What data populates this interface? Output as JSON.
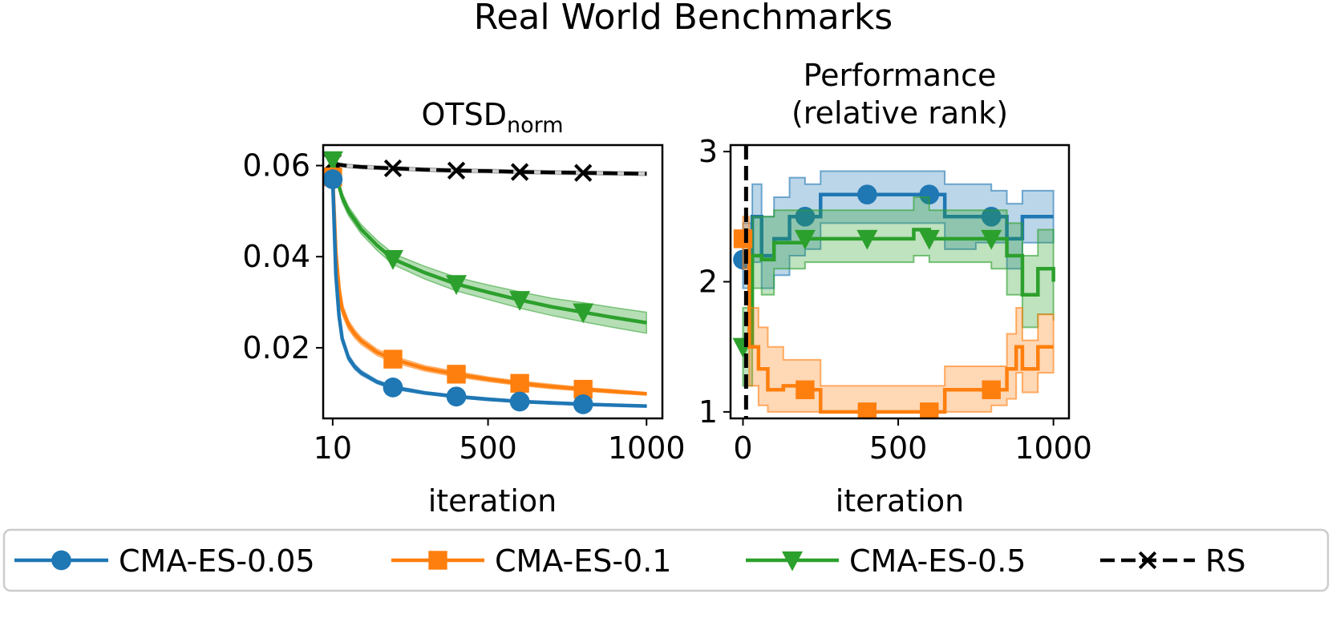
{
  "figure_title": "Real World Benchmarks",
  "colors": {
    "cma005": "#1f77b4",
    "cma01": "#ff7f0e",
    "cma05": "#2ca02c",
    "rs": "#000000"
  },
  "legend": [
    {
      "key": "cma005",
      "label": "CMA-ES-0.05",
      "marker": "circle",
      "dash": "solid"
    },
    {
      "key": "cma01",
      "label": "CMA-ES-0.1",
      "marker": "square",
      "dash": "solid"
    },
    {
      "key": "cma05",
      "label": "CMA-ES-0.5",
      "marker": "triangle-down",
      "dash": "solid"
    },
    {
      "key": "rs",
      "label": "RS",
      "marker": "x",
      "dash": "dashed"
    }
  ],
  "chart_data": [
    {
      "type": "line",
      "title_main": "OTSD",
      "title_sub": "norm",
      "xlabel": "iteration",
      "ylabel": "",
      "xlim": [
        -20,
        1050
      ],
      "ylim": [
        0.0045,
        0.0645
      ],
      "xticks": [
        10,
        500,
        1000
      ],
      "xtick_labels": [
        "10",
        "500",
        "1000"
      ],
      "yticks": [
        0.02,
        0.04,
        0.06
      ],
      "ytick_labels": [
        "0.02",
        "0.04",
        "0.06"
      ],
      "marker_x": [
        10,
        200,
        400,
        600,
        800
      ],
      "series": [
        {
          "key": "rs",
          "name": "RS",
          "x": [
            10,
            30,
            60,
            100,
            200,
            300,
            400,
            500,
            600,
            700,
            800,
            900,
            1000
          ],
          "y": [
            0.0607,
            0.0602,
            0.0599,
            0.0597,
            0.0594,
            0.0591,
            0.0589,
            0.0588,
            0.0586,
            0.0585,
            0.0584,
            0.0583,
            0.0582
          ],
          "lo": [
            0.0603,
            0.0598,
            0.0595,
            0.0593,
            0.059,
            0.0587,
            0.0585,
            0.0584,
            0.0582,
            0.0581,
            0.058,
            0.0579,
            0.0578
          ],
          "hi": [
            0.0611,
            0.0606,
            0.0603,
            0.0601,
            0.0598,
            0.0595,
            0.0593,
            0.0592,
            0.059,
            0.0589,
            0.0588,
            0.0587,
            0.0586
          ]
        },
        {
          "key": "cma05",
          "name": "CMA-ES-0.5",
          "x": [
            10,
            20,
            40,
            60,
            100,
            150,
            200,
            300,
            400,
            500,
            600,
            700,
            800,
            900,
            1000
          ],
          "y": [
            0.0612,
            0.058,
            0.053,
            0.05,
            0.046,
            0.0425,
            0.0395,
            0.0365,
            0.034,
            0.0322,
            0.0305,
            0.029,
            0.0278,
            0.0266,
            0.0255
          ],
          "lo": [
            0.0608,
            0.0572,
            0.052,
            0.049,
            0.045,
            0.0414,
            0.0383,
            0.0351,
            0.0325,
            0.0306,
            0.0287,
            0.0271,
            0.0257,
            0.0244,
            0.0232
          ],
          "hi": [
            0.0616,
            0.0588,
            0.054,
            0.051,
            0.047,
            0.0436,
            0.0407,
            0.0379,
            0.0355,
            0.0338,
            0.0323,
            0.0309,
            0.0299,
            0.0288,
            0.0278
          ]
        },
        {
          "key": "cma01",
          "name": "CMA-ES-0.1",
          "x": [
            10,
            20,
            30,
            40,
            60,
            80,
            100,
            150,
            200,
            300,
            400,
            500,
            600,
            700,
            800,
            900,
            1000
          ],
          "y": [
            0.0575,
            0.041,
            0.033,
            0.0285,
            0.025,
            0.023,
            0.0215,
            0.019,
            0.0175,
            0.0155,
            0.0142,
            0.0131,
            0.0122,
            0.0115,
            0.0109,
            0.0104,
            0.0099
          ],
          "lo": [
            0.0568,
            0.0398,
            0.0318,
            0.0273,
            0.024,
            0.0221,
            0.0207,
            0.0183,
            0.0168,
            0.0149,
            0.0136,
            0.0126,
            0.0117,
            0.011,
            0.0105,
            0.01,
            0.0096
          ],
          "hi": [
            0.0582,
            0.0422,
            0.0342,
            0.0297,
            0.026,
            0.0239,
            0.0223,
            0.0197,
            0.0182,
            0.0161,
            0.0148,
            0.0136,
            0.0127,
            0.012,
            0.0113,
            0.0108,
            0.0102
          ]
        },
        {
          "key": "cma005",
          "name": "CMA-ES-0.05",
          "x": [
            10,
            20,
            30,
            40,
            60,
            80,
            100,
            150,
            200,
            300,
            400,
            500,
            600,
            700,
            800,
            900,
            1000
          ],
          "y": [
            0.057,
            0.036,
            0.027,
            0.022,
            0.0178,
            0.0158,
            0.0145,
            0.0125,
            0.0113,
            0.0101,
            0.0093,
            0.0087,
            0.0082,
            0.0079,
            0.0076,
            0.0074,
            0.0072
          ],
          "lo": [
            0.0563,
            0.0348,
            0.026,
            0.0212,
            0.0171,
            0.0152,
            0.014,
            0.0121,
            0.0109,
            0.0098,
            0.009,
            0.0084,
            0.008,
            0.0076,
            0.0074,
            0.0072,
            0.007
          ],
          "hi": [
            0.0577,
            0.0372,
            0.028,
            0.0228,
            0.0185,
            0.0164,
            0.015,
            0.0129,
            0.0117,
            0.0104,
            0.0096,
            0.009,
            0.0085,
            0.0082,
            0.0079,
            0.0076,
            0.0074
          ]
        }
      ]
    },
    {
      "type": "line",
      "title_lines": [
        "Performance",
        "(relative rank)"
      ],
      "xlabel": "iteration",
      "ylabel": "",
      "xlim": [
        -40,
        1050
      ],
      "ylim": [
        0.95,
        3.05
      ],
      "xticks": [
        0,
        500,
        1000
      ],
      "xtick_labels": [
        "0",
        "500",
        "1000"
      ],
      "yticks": [
        1,
        2,
        3
      ],
      "ytick_labels": [
        "1",
        "2",
        "3"
      ],
      "marker_x": [
        0,
        200,
        400,
        600,
        800
      ],
      "vline": {
        "x": 10,
        "key": "rs"
      },
      "series": [
        {
          "key": "cma005",
          "name": "CMA-ES-0.05",
          "x": [
            0,
            30,
            60,
            100,
            150,
            200,
            250,
            400,
            500,
            600,
            650,
            700,
            750,
            800,
            850,
            900,
            1000
          ],
          "y": [
            2.17,
            2.5,
            2.2,
            2.33,
            2.5,
            2.5,
            2.67,
            2.67,
            2.67,
            2.67,
            2.5,
            2.5,
            2.5,
            2.5,
            2.33,
            2.5,
            2.5
          ],
          "lo": [
            1.95,
            2.15,
            1.95,
            2.05,
            2.2,
            2.25,
            2.45,
            2.45,
            2.45,
            2.45,
            2.25,
            2.25,
            2.3,
            2.3,
            2.1,
            2.3,
            2.3
          ],
          "hi": [
            2.45,
            2.75,
            2.5,
            2.65,
            2.8,
            2.75,
            2.85,
            2.85,
            2.85,
            2.85,
            2.75,
            2.75,
            2.75,
            2.7,
            2.6,
            2.7,
            2.7
          ]
        },
        {
          "key": "cma05",
          "name": "CMA-ES-0.5",
          "x": [
            0,
            30,
            60,
            100,
            200,
            300,
            400,
            500,
            550,
            600,
            700,
            800,
            850,
            900,
            950,
            1000
          ],
          "y": [
            1.5,
            2.2,
            2.17,
            2.3,
            2.33,
            2.33,
            2.33,
            2.33,
            2.4,
            2.33,
            2.33,
            2.33,
            2.2,
            1.9,
            2.1,
            2.0
          ],
          "lo": [
            1.2,
            1.95,
            1.9,
            2.1,
            2.15,
            2.15,
            2.15,
            2.15,
            2.2,
            2.15,
            2.15,
            2.1,
            1.9,
            1.65,
            1.75,
            1.7
          ],
          "hi": [
            1.8,
            2.5,
            2.5,
            2.55,
            2.55,
            2.55,
            2.55,
            2.55,
            2.65,
            2.55,
            2.55,
            2.55,
            2.45,
            2.2,
            2.4,
            2.35
          ]
        },
        {
          "key": "cma01",
          "name": "CMA-ES-0.1",
          "x": [
            0,
            20,
            50,
            80,
            130,
            200,
            250,
            300,
            350,
            400,
            500,
            600,
            650,
            700,
            800,
            850,
            880,
            900,
            950,
            1000
          ],
          "y": [
            2.33,
            1.5,
            1.33,
            1.17,
            1.2,
            1.17,
            1.0,
            1.0,
            1.0,
            1.0,
            1.0,
            1.0,
            1.17,
            1.17,
            1.17,
            1.33,
            1.5,
            1.33,
            1.5,
            1.5
          ],
          "lo": [
            2.1,
            1.2,
            1.05,
            1.0,
            1.0,
            1.0,
            1.0,
            1.0,
            1.0,
            1.0,
            1.0,
            1.0,
            1.0,
            1.0,
            1.05,
            1.1,
            1.3,
            1.15,
            1.3,
            1.3
          ],
          "hi": [
            2.5,
            1.8,
            1.65,
            1.5,
            1.4,
            1.4,
            1.2,
            1.2,
            1.2,
            1.2,
            1.2,
            1.2,
            1.35,
            1.35,
            1.35,
            1.6,
            1.8,
            1.55,
            1.75,
            1.75
          ]
        }
      ]
    }
  ]
}
